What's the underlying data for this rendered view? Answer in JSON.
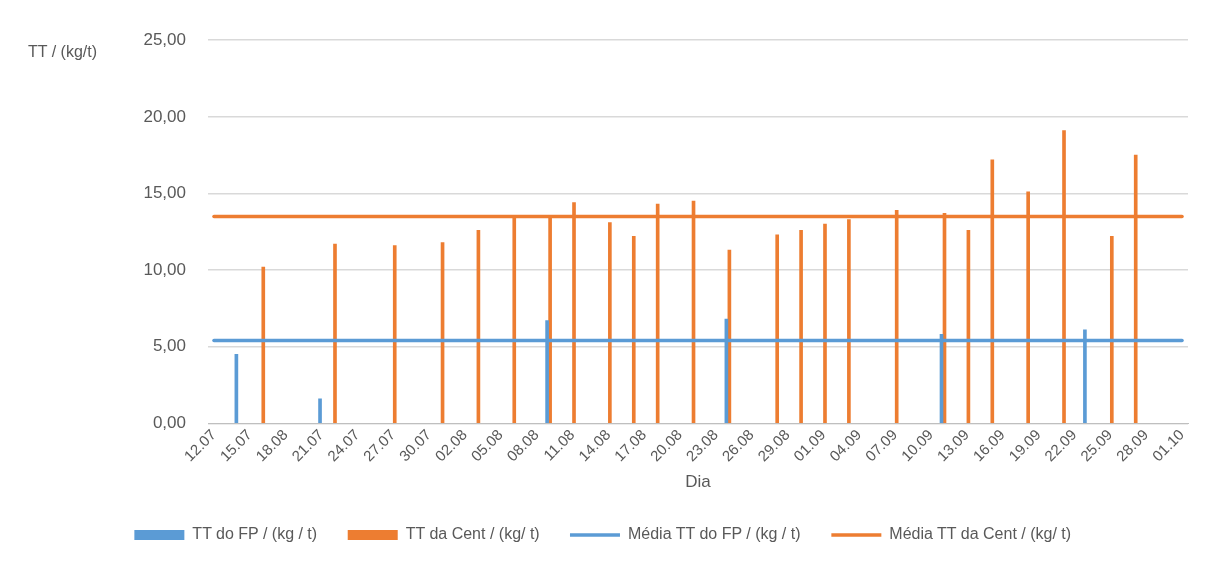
{
  "chart_data": {
    "type": "bar",
    "xlabel": "Dia",
    "ylabel": "TT / (kg/t)",
    "categories": [
      "12.07",
      null,
      null,
      "15.07",
      null,
      null,
      "18.08",
      null,
      null,
      "21.07",
      null,
      null,
      "24.07",
      null,
      null,
      "27.07",
      null,
      null,
      "30.07",
      null,
      null,
      "02.08",
      null,
      null,
      "05.08",
      null,
      null,
      "08.08",
      null,
      null,
      "11.08",
      null,
      null,
      "14.08",
      null,
      null,
      "17.08",
      null,
      null,
      "20.08",
      null,
      null,
      "23.08",
      null,
      null,
      "26.08",
      null,
      null,
      "29.08",
      null,
      null,
      "01.09",
      null,
      null,
      "04.09",
      null,
      null,
      "07.09",
      null,
      null,
      "10.09",
      null,
      null,
      "13.09",
      null,
      null,
      "16.09",
      null,
      null,
      "19.09",
      null,
      null,
      "22.09",
      null,
      null,
      "25.09",
      null,
      null,
      "28.09",
      null,
      null,
      "01.10"
    ],
    "ylim": [
      0,
      25
    ],
    "yticks": [
      {
        "value": 0,
        "label": "0,00"
      },
      {
        "value": 5,
        "label": "5,00"
      },
      {
        "value": 10,
        "label": "10,00"
      },
      {
        "value": 15,
        "label": "15,00"
      },
      {
        "value": 20,
        "label": "20,00"
      },
      {
        "value": 25,
        "label": "25,00"
      }
    ],
    "grid": "y",
    "legend": "bottom",
    "series": [
      {
        "name": "TT do FP / (kg / t)",
        "color": "#5b9bd5",
        "values": [
          null,
          null,
          4.5,
          null,
          null,
          null,
          null,
          null,
          null,
          1.6,
          null,
          null,
          null,
          null,
          null,
          null,
          null,
          null,
          null,
          null,
          null,
          null,
          null,
          null,
          null,
          null,
          null,
          null,
          6.7,
          null,
          null,
          null,
          null,
          null,
          null,
          null,
          null,
          null,
          null,
          null,
          null,
          null,
          null,
          6.8,
          null,
          null,
          null,
          null,
          null,
          null,
          null,
          null,
          null,
          null,
          null,
          null,
          null,
          null,
          null,
          null,
          null,
          5.8,
          null,
          null,
          null,
          null,
          null,
          null,
          null,
          null,
          null,
          null,
          null,
          6.1,
          null,
          null,
          null,
          null,
          null,
          null,
          null,
          null
        ]
      },
      {
        "name": "TT da Cent / (kg/ t)",
        "color": "#ed7d31",
        "values": [
          null,
          null,
          null,
          null,
          10.2,
          null,
          null,
          null,
          null,
          null,
          11.7,
          null,
          null,
          null,
          null,
          11.6,
          null,
          null,
          null,
          11.8,
          null,
          null,
          12.6,
          null,
          null,
          13.4,
          null,
          null,
          13.4,
          null,
          14.4,
          null,
          null,
          13.1,
          null,
          12.2,
          null,
          14.3,
          null,
          null,
          14.5,
          null,
          null,
          11.3,
          null,
          null,
          null,
          12.3,
          null,
          12.6,
          null,
          13.0,
          null,
          13.3,
          null,
          null,
          null,
          13.9,
          null,
          null,
          null,
          13.7,
          null,
          12.6,
          null,
          17.2,
          null,
          null,
          15.1,
          null,
          null,
          19.1,
          null,
          null,
          null,
          12.2,
          null,
          17.5,
          null,
          null,
          null,
          null
        ]
      },
      {
        "type": "line",
        "name": "Média TT do FP / (kg / t)",
        "color": "#5b9bd5",
        "values": [
          5.4,
          5.4,
          5.4,
          5.4,
          5.4,
          5.4,
          5.4,
          5.4,
          5.4,
          5.4,
          5.4,
          5.4,
          5.4,
          5.4,
          5.4,
          5.4,
          5.4,
          5.4,
          5.4,
          5.4,
          5.4,
          5.4,
          5.4,
          5.4,
          5.4,
          5.4,
          5.4,
          5.4,
          5.4,
          5.4,
          5.4,
          5.4,
          5.4,
          5.4,
          5.4,
          5.4,
          5.4,
          5.4,
          5.4,
          5.4,
          5.4,
          5.4,
          5.4,
          5.4,
          5.4,
          5.4,
          5.4,
          5.4,
          5.4,
          5.4,
          5.4,
          5.4,
          5.4,
          5.4,
          5.4,
          5.4,
          5.4,
          5.4,
          5.4,
          5.4,
          5.4,
          5.4,
          5.4,
          5.4,
          5.4,
          5.4,
          5.4,
          5.4,
          5.4,
          5.4,
          5.4,
          5.4,
          5.4,
          5.4,
          5.4,
          5.4,
          5.4,
          5.4,
          5.4,
          5.4,
          5.4,
          5.4
        ]
      },
      {
        "type": "line",
        "name": "Média TT da Cent / (kg/ t)",
        "color": "#ed7d31",
        "values": [
          13.5,
          13.5,
          13.5,
          13.5,
          13.5,
          13.5,
          13.5,
          13.5,
          13.5,
          13.5,
          13.5,
          13.5,
          13.5,
          13.5,
          13.5,
          13.5,
          13.5,
          13.5,
          13.5,
          13.5,
          13.5,
          13.5,
          13.5,
          13.5,
          13.5,
          13.5,
          13.5,
          13.5,
          13.5,
          13.5,
          13.5,
          13.5,
          13.5,
          13.5,
          13.5,
          13.5,
          13.5,
          13.5,
          13.5,
          13.5,
          13.5,
          13.5,
          13.5,
          13.5,
          13.5,
          13.5,
          13.5,
          13.5,
          13.5,
          13.5,
          13.5,
          13.5,
          13.5,
          13.5,
          13.5,
          13.5,
          13.5,
          13.5,
          13.5,
          13.5,
          13.5,
          13.5,
          13.5,
          13.5,
          13.5,
          13.5,
          13.5,
          13.5,
          13.5,
          13.5,
          13.5,
          13.5,
          13.5,
          13.5,
          13.5,
          13.5,
          13.5,
          13.5,
          13.5,
          13.5,
          13.5,
          13.5
        ]
      }
    ]
  }
}
